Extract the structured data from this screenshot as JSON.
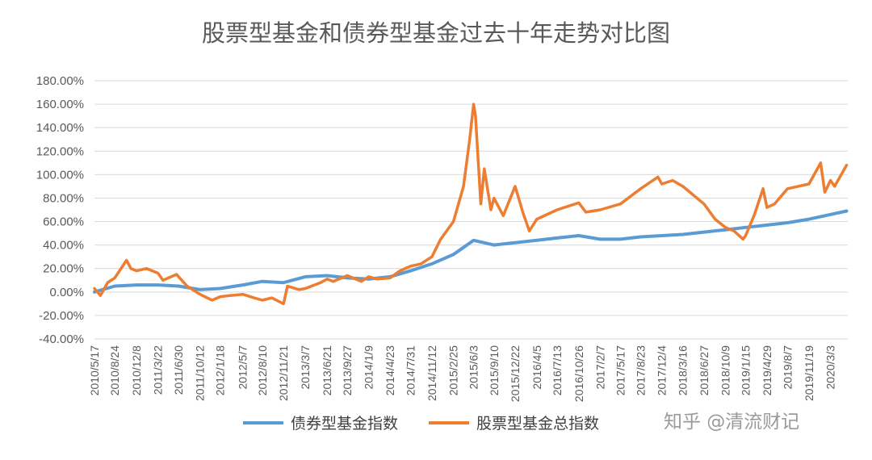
{
  "chart_data": {
    "type": "line",
    "title": "股票型基金和债券型基金过去十年走势对比图",
    "xlabel": "",
    "ylabel": "",
    "ylim": [
      -40,
      180
    ],
    "y_tick_labels": [
      "-40.00%",
      "-20.00%",
      "0.00%",
      "20.00%",
      "40.00%",
      "60.00%",
      "80.00%",
      "100.00%",
      "120.00%",
      "140.00%",
      "160.00%",
      "180.00%"
    ],
    "x_tick_labels": [
      "2010/5/17",
      "2010/8/24",
      "2010/12/8",
      "2011/3/22",
      "2011/6/30",
      "2011/10/12",
      "2012/1/18",
      "2012/5/7",
      "2012/8/10",
      "2012/11/21",
      "2013/3/7",
      "2013/6/21",
      "2013/9/27",
      "2014/1/9",
      "2014/4/23",
      "2014/7/31",
      "2014/11/12",
      "2015/2/25",
      "2015/6/3",
      "2015/9/10",
      "2015/12/22",
      "2016/4/5",
      "2016/7/13",
      "2016/10/26",
      "2017/2/7",
      "2017/5/17",
      "2017/8/23",
      "2017/12/4",
      "2018/3/16",
      "2018/6/27",
      "2018/10/9",
      "2019/1/15",
      "2019/4/29",
      "2019/8/7",
      "2019/11/19",
      "2020/3/3"
    ],
    "grid": true,
    "legend_position": "bottom",
    "series": [
      {
        "name": "债券型基金指数",
        "color": "#5B9BD5",
        "x": [
          "2010/5/17",
          "2010/8/24",
          "2010/12/8",
          "2011/3/22",
          "2011/6/30",
          "2011/10/12",
          "2012/1/18",
          "2012/5/7",
          "2012/8/10",
          "2012/11/21",
          "2013/3/7",
          "2013/6/21",
          "2013/9/27",
          "2014/1/9",
          "2014/4/23",
          "2014/7/31",
          "2014/11/12",
          "2015/2/25",
          "2015/6/3",
          "2015/9/10",
          "2015/12/22",
          "2016/4/5",
          "2016/7/13",
          "2016/10/26",
          "2017/2/7",
          "2017/5/17",
          "2017/8/23",
          "2017/12/4",
          "2018/3/16",
          "2018/6/27",
          "2018/10/9",
          "2019/1/15",
          "2019/4/29",
          "2019/8/7",
          "2019/11/19",
          "2020/3/3",
          "2020/5/20"
        ],
        "values": [
          0,
          5,
          6,
          6,
          5,
          2,
          3,
          6,
          9,
          8,
          13,
          14,
          12,
          11,
          13,
          18,
          24,
          32,
          44,
          40,
          42,
          44,
          46,
          48,
          45,
          45,
          47,
          48,
          49,
          51,
          53,
          55,
          57,
          59,
          62,
          66,
          69
        ]
      },
      {
        "name": "股票型基金总指数",
        "color": "#ED7D31",
        "x": [
          "2010/5/17",
          "2010/6/15",
          "2010/7/20",
          "2010/8/24",
          "2010/10/20",
          "2010/11/10",
          "2010/12/8",
          "2011/1/25",
          "2011/3/22",
          "2011/4/15",
          "2011/6/20",
          "2011/6/30",
          "2011/8/10",
          "2011/10/12",
          "2011/12/10",
          "2012/1/18",
          "2012/3/5",
          "2012/5/7",
          "2012/7/1",
          "2012/8/10",
          "2012/9/25",
          "2012/11/21",
          "2012/12/10",
          "2013/2/5",
          "2013/3/7",
          "2013/5/20",
          "2013/6/21",
          "2013/7/20",
          "2013/9/27",
          "2013/12/5",
          "2014/1/9",
          "2014/2/20",
          "2014/4/23",
          "2014/6/10",
          "2014/7/31",
          "2014/9/20",
          "2014/11/12",
          "2014/12/25",
          "2015/2/25",
          "2015/4/15",
          "2015/5/15",
          "2015/6/3",
          "2015/6/12",
          "2015/7/8",
          "2015/7/25",
          "2015/8/26",
          "2015/9/10",
          "2015/10/25",
          "2015/12/22",
          "2016/1/28",
          "2016/2/29",
          "2016/4/5",
          "2016/7/13",
          "2016/10/26",
          "2016/11/30",
          "2017/2/7",
          "2017/5/17",
          "2017/8/23",
          "2017/11/15",
          "2017/12/4",
          "2018/1/25",
          "2018/3/16",
          "2018/6/27",
          "2018/8/20",
          "2018/10/9",
          "2018/11/20",
          "2019/1/3",
          "2019/1/15",
          "2019/2/25",
          "2019/4/10",
          "2019/4/29",
          "2019/6/5",
          "2019/8/7",
          "2019/11/19",
          "2020/1/15",
          "2020/2/4",
          "2020/3/3",
          "2020/3/23",
          "2020/5/20"
        ],
        "values": [
          3,
          -3,
          8,
          12,
          27,
          20,
          18,
          20,
          16,
          10,
          15,
          13,
          5,
          -2,
          -7,
          -4,
          -3,
          -2,
          -5,
          -7,
          -5,
          -10,
          5,
          2,
          3,
          8,
          11,
          9,
          14,
          9,
          13,
          11,
          12,
          18,
          22,
          24,
          30,
          45,
          60,
          90,
          130,
          160,
          150,
          75,
          105,
          70,
          80,
          65,
          90,
          68,
          52,
          62,
          70,
          76,
          68,
          70,
          75,
          88,
          98,
          92,
          95,
          90,
          75,
          62,
          55,
          52,
          45,
          48,
          65,
          88,
          72,
          75,
          88,
          92,
          110,
          85,
          95,
          90,
          108
        ]
      }
    ]
  },
  "legend": {
    "items": [
      {
        "label": "债券型基金指数",
        "color": "#5B9BD5"
      },
      {
        "label": "股票型基金总指数",
        "color": "#ED7D31"
      }
    ]
  },
  "watermark": {
    "text": "知乎 @清流财记"
  }
}
